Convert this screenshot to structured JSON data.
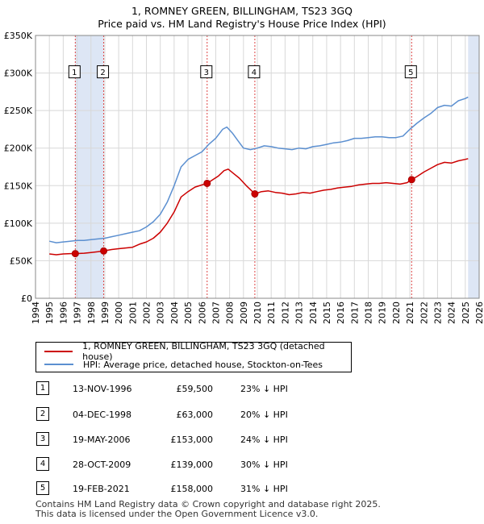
{
  "title": "1, ROMNEY GREEN, BILLINGHAM, TS23 3GQ",
  "subtitle": "Price paid vs. HM Land Registry's House Price Index (HPI)",
  "legend": {
    "property": "1, ROMNEY GREEN, BILLINGHAM, TS23 3GQ (detached house)",
    "hpi": "HPI: Average price, detached house, Stockton-on-Tees"
  },
  "colors": {
    "property": "#cc0000",
    "hpi": "#5b8fd0",
    "shade": "#dde6f5",
    "grid": "#d8d8d8",
    "vline": "#dd4444"
  },
  "sales": [
    {
      "num": "1",
      "date": "13-NOV-1996",
      "price": "£59,500",
      "pct": "23% ↓ HPI"
    },
    {
      "num": "2",
      "date": "04-DEC-1998",
      "price": "£63,000",
      "pct": "20% ↓ HPI"
    },
    {
      "num": "3",
      "date": "19-MAY-2006",
      "price": "£153,000",
      "pct": "24% ↓ HPI"
    },
    {
      "num": "4",
      "date": "28-OCT-2009",
      "price": "£139,000",
      "pct": "30% ↓ HPI"
    },
    {
      "num": "5",
      "date": "19-FEB-2021",
      "price": "£158,000",
      "pct": "31% ↓ HPI"
    }
  ],
  "footer": {
    "line1": "Contains HM Land Registry data © Crown copyright and database right 2025.",
    "line2": "This data is licensed under the Open Government Licence v3.0."
  },
  "chart_data": {
    "type": "line",
    "xlim": [
      1994,
      2026
    ],
    "ylim": [
      0,
      350000
    ],
    "grid": true,
    "x_ticks": [
      "1994",
      "1995",
      "1996",
      "1997",
      "1998",
      "1999",
      "2000",
      "2001",
      "2002",
      "2003",
      "2004",
      "2005",
      "2006",
      "2007",
      "2008",
      "2009",
      "2010",
      "2011",
      "2012",
      "2013",
      "2014",
      "2015",
      "2016",
      "2017",
      "2018",
      "2019",
      "2020",
      "2021",
      "2022",
      "2023",
      "2024",
      "2025",
      "2026"
    ],
    "y_ticks": [
      {
        "value": 0,
        "label": "£0"
      },
      {
        "value": 50000,
        "label": "£50K"
      },
      {
        "value": 100000,
        "label": "£100K"
      },
      {
        "value": 150000,
        "label": "£150K"
      },
      {
        "value": 200000,
        "label": "£200K"
      },
      {
        "value": 250000,
        "label": "£250K"
      },
      {
        "value": 300000,
        "label": "£300K"
      },
      {
        "value": 350000,
        "label": "£350K"
      }
    ],
    "shaded_ranges": [
      [
        1996.87,
        1998.92
      ],
      [
        2025.2,
        2026
      ]
    ],
    "sale_points": [
      {
        "label": "1",
        "x": 1996.87,
        "y": 59500
      },
      {
        "label": "2",
        "x": 1998.92,
        "y": 63000
      },
      {
        "label": "3",
        "x": 2006.38,
        "y": 153000
      },
      {
        "label": "4",
        "x": 2009.82,
        "y": 139000
      },
      {
        "label": "5",
        "x": 2021.13,
        "y": 158000
      }
    ],
    "series": [
      {
        "name": "HPI: Average price, detached house, Stockton-on-Tees",
        "points": [
          [
            1995.0,
            76000
          ],
          [
            1995.5,
            74000
          ],
          [
            1996.0,
            75000
          ],
          [
            1996.5,
            76000
          ],
          [
            1997.0,
            77000
          ],
          [
            1997.5,
            77000
          ],
          [
            1998.0,
            78000
          ],
          [
            1998.5,
            79000
          ],
          [
            1999.0,
            80000
          ],
          [
            1999.5,
            82000
          ],
          [
            2000.0,
            84000
          ],
          [
            2000.5,
            86000
          ],
          [
            2001.0,
            88000
          ],
          [
            2001.5,
            90000
          ],
          [
            2002.0,
            95000
          ],
          [
            2002.5,
            102000
          ],
          [
            2003.0,
            112000
          ],
          [
            2003.5,
            128000
          ],
          [
            2004.0,
            150000
          ],
          [
            2004.5,
            175000
          ],
          [
            2005.0,
            185000
          ],
          [
            2005.5,
            190000
          ],
          [
            2006.0,
            195000
          ],
          [
            2006.5,
            205000
          ],
          [
            2007.0,
            213000
          ],
          [
            2007.5,
            225000
          ],
          [
            2007.8,
            228000
          ],
          [
            2008.2,
            220000
          ],
          [
            2008.6,
            210000
          ],
          [
            2009.0,
            200000
          ],
          [
            2009.5,
            198000
          ],
          [
            2010.0,
            200000
          ],
          [
            2010.5,
            203000
          ],
          [
            2011.0,
            202000
          ],
          [
            2011.5,
            200000
          ],
          [
            2012.0,
            199000
          ],
          [
            2012.5,
            198000
          ],
          [
            2013.0,
            200000
          ],
          [
            2013.5,
            199000
          ],
          [
            2014.0,
            202000
          ],
          [
            2014.5,
            203000
          ],
          [
            2015.0,
            205000
          ],
          [
            2015.5,
            207000
          ],
          [
            2016.0,
            208000
          ],
          [
            2016.5,
            210000
          ],
          [
            2017.0,
            213000
          ],
          [
            2017.5,
            213000
          ],
          [
            2018.0,
            214000
          ],
          [
            2018.5,
            215000
          ],
          [
            2019.0,
            215000
          ],
          [
            2019.5,
            214000
          ],
          [
            2020.0,
            214000
          ],
          [
            2020.5,
            216000
          ],
          [
            2021.0,
            225000
          ],
          [
            2021.5,
            233000
          ],
          [
            2022.0,
            240000
          ],
          [
            2022.5,
            246000
          ],
          [
            2023.0,
            254000
          ],
          [
            2023.5,
            257000
          ],
          [
            2024.0,
            256000
          ],
          [
            2024.5,
            263000
          ],
          [
            2025.0,
            266000
          ],
          [
            2025.2,
            268000
          ]
        ]
      },
      {
        "name": "1, ROMNEY GREEN, BILLINGHAM, TS23 3GQ (detached house)",
        "points": [
          [
            1995.0,
            59000
          ],
          [
            1995.5,
            58000
          ],
          [
            1996.0,
            59000
          ],
          [
            1996.5,
            59500
          ],
          [
            1996.87,
            59500
          ],
          [
            1997.5,
            60000
          ],
          [
            1998.0,
            61000
          ],
          [
            1998.5,
            62000
          ],
          [
            1998.92,
            63000
          ],
          [
            1999.5,
            65000
          ],
          [
            2000.0,
            66000
          ],
          [
            2000.5,
            67000
          ],
          [
            2001.0,
            68000
          ],
          [
            2001.5,
            72000
          ],
          [
            2002.0,
            75000
          ],
          [
            2002.5,
            80000
          ],
          [
            2003.0,
            88000
          ],
          [
            2003.5,
            100000
          ],
          [
            2004.0,
            115000
          ],
          [
            2004.5,
            135000
          ],
          [
            2005.0,
            142000
          ],
          [
            2005.5,
            148000
          ],
          [
            2006.0,
            151000
          ],
          [
            2006.38,
            153000
          ],
          [
            2006.8,
            158000
          ],
          [
            2007.2,
            163000
          ],
          [
            2007.6,
            170000
          ],
          [
            2007.9,
            172000
          ],
          [
            2008.3,
            166000
          ],
          [
            2008.7,
            160000
          ],
          [
            2009.2,
            150000
          ],
          [
            2009.6,
            143000
          ],
          [
            2009.82,
            139000
          ],
          [
            2010.3,
            142000
          ],
          [
            2010.8,
            143000
          ],
          [
            2011.3,
            141000
          ],
          [
            2011.8,
            140000
          ],
          [
            2012.3,
            138000
          ],
          [
            2012.8,
            139000
          ],
          [
            2013.3,
            141000
          ],
          [
            2013.8,
            140000
          ],
          [
            2014.3,
            142000
          ],
          [
            2014.8,
            144000
          ],
          [
            2015.3,
            145000
          ],
          [
            2015.8,
            147000
          ],
          [
            2016.3,
            148000
          ],
          [
            2016.8,
            149000
          ],
          [
            2017.3,
            151000
          ],
          [
            2017.8,
            152000
          ],
          [
            2018.3,
            153000
          ],
          [
            2018.8,
            153000
          ],
          [
            2019.3,
            154000
          ],
          [
            2019.8,
            153000
          ],
          [
            2020.3,
            152000
          ],
          [
            2020.8,
            154000
          ],
          [
            2021.13,
            158000
          ],
          [
            2021.5,
            162000
          ],
          [
            2022.0,
            168000
          ],
          [
            2022.5,
            173000
          ],
          [
            2023.0,
            178000
          ],
          [
            2023.5,
            181000
          ],
          [
            2024.0,
            180000
          ],
          [
            2024.5,
            183000
          ],
          [
            2025.0,
            185000
          ],
          [
            2025.2,
            186000
          ]
        ]
      }
    ]
  }
}
